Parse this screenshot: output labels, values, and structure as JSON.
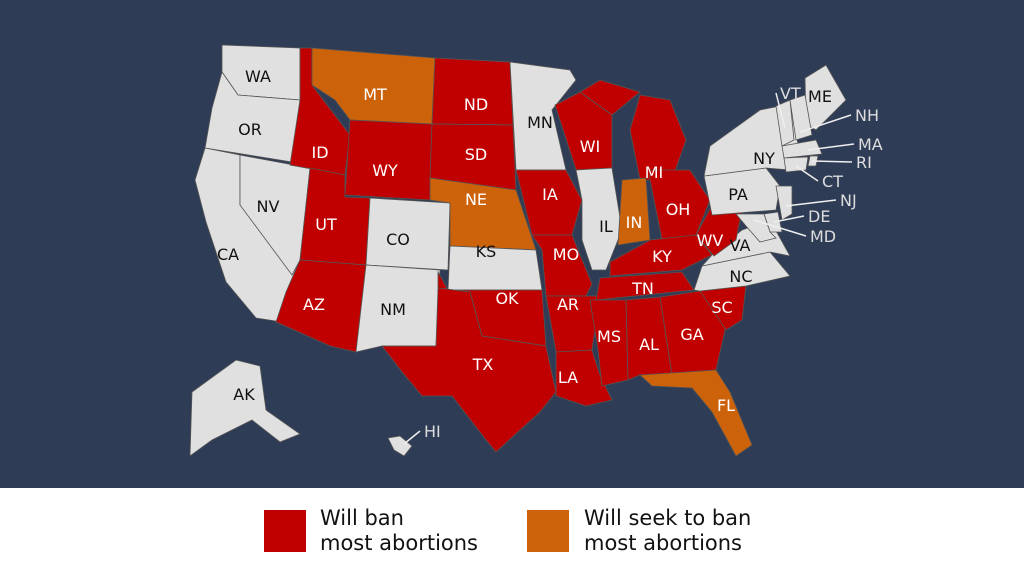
{
  "colors": {
    "background": "#2e3c56",
    "ban": "#c00000",
    "seek": "#cc620a",
    "none": "#e0e0e0",
    "border": "#555555",
    "callout": "#dddddd"
  },
  "states": [
    {
      "code": "WA",
      "label": "WA",
      "status": "none"
    },
    {
      "code": "OR",
      "label": "OR",
      "status": "none"
    },
    {
      "code": "CA",
      "label": "CA",
      "status": "none"
    },
    {
      "code": "NV",
      "label": "NV",
      "status": "none"
    },
    {
      "code": "ID",
      "label": "ID",
      "status": "ban"
    },
    {
      "code": "MT",
      "label": "MT",
      "status": "seek"
    },
    {
      "code": "WY",
      "label": "WY",
      "status": "ban"
    },
    {
      "code": "UT",
      "label": "UT",
      "status": "ban"
    },
    {
      "code": "AZ",
      "label": "AZ",
      "status": "ban"
    },
    {
      "code": "CO",
      "label": "CO",
      "status": "none"
    },
    {
      "code": "NM",
      "label": "NM",
      "status": "none"
    },
    {
      "code": "ND",
      "label": "ND",
      "status": "ban"
    },
    {
      "code": "SD",
      "label": "SD",
      "status": "ban"
    },
    {
      "code": "NE",
      "label": "NE",
      "status": "seek"
    },
    {
      "code": "KS",
      "label": "KS",
      "status": "none"
    },
    {
      "code": "OK",
      "label": "OK",
      "status": "ban"
    },
    {
      "code": "TX",
      "label": "TX",
      "status": "ban"
    },
    {
      "code": "MN",
      "label": "MN",
      "status": "none"
    },
    {
      "code": "IA",
      "label": "IA",
      "status": "ban"
    },
    {
      "code": "MO",
      "label": "MO",
      "status": "ban"
    },
    {
      "code": "AR",
      "label": "AR",
      "status": "ban"
    },
    {
      "code": "LA",
      "label": "LA",
      "status": "ban"
    },
    {
      "code": "WI",
      "label": "WI",
      "status": "ban"
    },
    {
      "code": "IL",
      "label": "IL",
      "status": "none"
    },
    {
      "code": "MI",
      "label": "MI",
      "status": "ban"
    },
    {
      "code": "IN",
      "label": "IN",
      "status": "seek"
    },
    {
      "code": "OH",
      "label": "OH",
      "status": "ban"
    },
    {
      "code": "KY",
      "label": "KY",
      "status": "ban"
    },
    {
      "code": "TN",
      "label": "TN",
      "status": "ban"
    },
    {
      "code": "MS",
      "label": "MS",
      "status": "ban"
    },
    {
      "code": "AL",
      "label": "AL",
      "status": "ban"
    },
    {
      "code": "GA",
      "label": "GA",
      "status": "ban"
    },
    {
      "code": "FL",
      "label": "FL",
      "status": "seek"
    },
    {
      "code": "SC",
      "label": "SC",
      "status": "ban"
    },
    {
      "code": "NC",
      "label": "NC",
      "status": "none"
    },
    {
      "code": "VA",
      "label": "VA",
      "status": "none"
    },
    {
      "code": "WV",
      "label": "WV",
      "status": "ban"
    },
    {
      "code": "PA",
      "label": "PA",
      "status": "none"
    },
    {
      "code": "NY",
      "label": "NY",
      "status": "none"
    },
    {
      "code": "ME",
      "label": "ME",
      "status": "none"
    },
    {
      "code": "VT",
      "label": "VT",
      "status": "none"
    },
    {
      "code": "NH",
      "label": "NH",
      "status": "none"
    },
    {
      "code": "MA",
      "label": "MA",
      "status": "none"
    },
    {
      "code": "RI",
      "label": "RI",
      "status": "none"
    },
    {
      "code": "CT",
      "label": "CT",
      "status": "none"
    },
    {
      "code": "NJ",
      "label": "NJ",
      "status": "none"
    },
    {
      "code": "DE",
      "label": "DE",
      "status": "none"
    },
    {
      "code": "MD",
      "label": "MD",
      "status": "none"
    },
    {
      "code": "AK",
      "label": "AK",
      "status": "none"
    },
    {
      "code": "HI",
      "label": "HI",
      "status": "none"
    }
  ],
  "legend": {
    "ban": {
      "line1": "Will ban",
      "line2": "most abortions"
    },
    "seek": {
      "line1": "Will seek to ban",
      "line2": "most abortions"
    }
  }
}
